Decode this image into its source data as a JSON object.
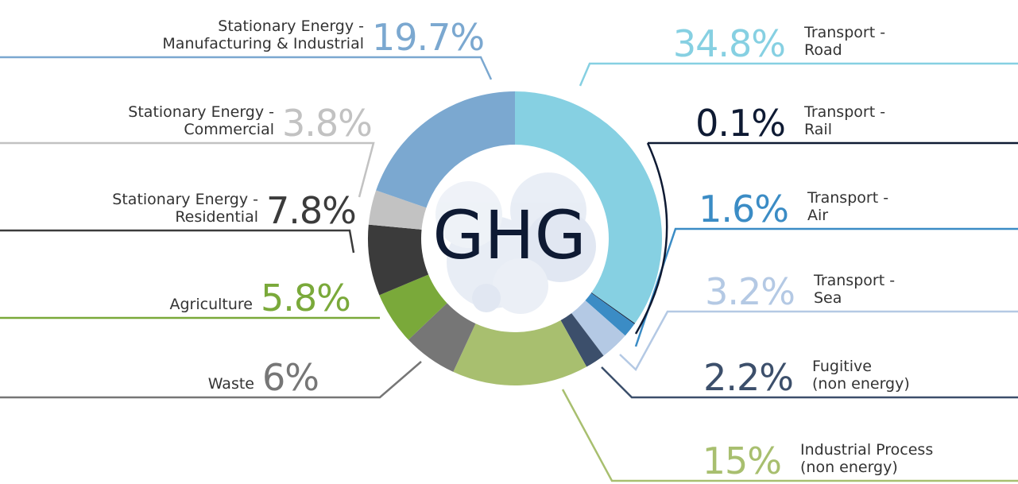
{
  "chart_data": {
    "type": "donut",
    "center_label": "GHG",
    "categories": [
      "Transport -\nRoad",
      "Transport -\nRail",
      "Transport -\nAir",
      "Transport -\nSea",
      "Fugitive\n(non energy)",
      "Industrial Process\n(non energy)",
      "Waste",
      "Agriculture",
      "Stationary Energy -\nResidential",
      "Stationary Energy -\nCommercial",
      "Stationary Energy -\nManufacturing & Industrial"
    ],
    "values": [
      34.8,
      0.1,
      1.6,
      3.2,
      2.2,
      15,
      6,
      5.8,
      7.8,
      3.8,
      19.7
    ],
    "value_labels": [
      "34.8%",
      "0.1%",
      "1.6%",
      "3.2%",
      "2.2%",
      "15%",
      "6%",
      "5.8%",
      "7.8%",
      "3.8%",
      "19.7%"
    ],
    "colors": [
      "#86d0e2",
      "#0e1a33",
      "#3b8cc5",
      "#b4c9e4",
      "#3c4f6b",
      "#a8bf6f",
      "#767676",
      "#7aa93a",
      "#3b3b3b",
      "#c2c2c2",
      "#7ba8d0"
    ]
  }
}
